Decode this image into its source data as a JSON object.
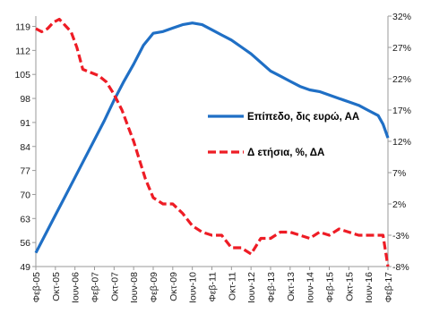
{
  "chart_data": {
    "type": "line",
    "categories": [
      "Φεβ-05",
      "Οκτ-05",
      "Ιουν-06",
      "Φεβ-07",
      "Οκτ-07",
      "Ιουν-08",
      "Φεβ-09",
      "Οκτ-09",
      "Ιουν-10",
      "Φεβ-11",
      "Οκτ-11",
      "Ιουν-12",
      "Φεβ-13",
      "Οκτ-13",
      "Ιουν-14",
      "Φεβ-15",
      "Οκτ-15",
      "Ιουν-16",
      "Φεβ-17"
    ],
    "left_axis": {
      "ticks": [
        "49",
        "56",
        "63",
        "70",
        "77",
        "84",
        "91",
        "98",
        "105",
        "112",
        "119"
      ],
      "min": 49,
      "max": 122
    },
    "right_axis": {
      "ticks": [
        "-8%",
        "-3%",
        "2%",
        "7%",
        "12%",
        "17%",
        "22%",
        "27%",
        "32%"
      ],
      "min": -8,
      "max": 32
    },
    "series": [
      {
        "name": "Επίπεδο, δις ευρώ, ΑΑ",
        "axis": "left",
        "color": "#1F6FC5",
        "style": "solid",
        "x": [
          0,
          0.5,
          1,
          1.5,
          2,
          2.5,
          3,
          3.5,
          4,
          4.5,
          5,
          5.5,
          6,
          6.5,
          7,
          7.5,
          8,
          8.5,
          9,
          9.5,
          10,
          10.5,
          11,
          11.5,
          12,
          12.5,
          13,
          13.5,
          14,
          14.5,
          15,
          15.5,
          16,
          16.5,
          17,
          17.5,
          17.75,
          18
        ],
        "values": [
          53,
          58.5,
          64,
          69.5,
          75,
          80.5,
          86,
          91.5,
          97.5,
          103,
          108,
          113.5,
          117,
          117.5,
          118.5,
          119.5,
          120,
          119.5,
          118,
          116.5,
          115,
          113,
          111,
          108.5,
          106,
          104.5,
          103,
          101.5,
          100.5,
          100,
          99,
          98,
          97,
          96,
          94.5,
          93,
          90.5,
          86.5
        ]
      },
      {
        "name": "Δ ετήσια, %, ΔΑ",
        "axis": "right",
        "color": "#EE1C25",
        "style": "dashed",
        "x": [
          0,
          0.3,
          0.6,
          0.9,
          1.2,
          1.5,
          1.8,
          2.1,
          2.4,
          2.8,
          3.2,
          3.6,
          4,
          4.4,
          4.7,
          5,
          5.3,
          5.6,
          6,
          6.5,
          7,
          7.5,
          8,
          8.5,
          9,
          9.5,
          10,
          10.5,
          11,
          11.5,
          12,
          12.5,
          13,
          13.5,
          14,
          14.5,
          15,
          15.5,
          16,
          16.5,
          17,
          17.5,
          17.75,
          18
        ],
        "values": [
          30,
          29.5,
          30,
          31,
          31.5,
          30.5,
          29.5,
          27,
          23.5,
          23,
          22.5,
          21.5,
          19.5,
          17,
          14.5,
          12,
          9,
          6,
          3,
          2,
          2,
          0.5,
          -1.5,
          -2.5,
          -3,
          -3,
          -5,
          -5,
          -6,
          -3.5,
          -3.5,
          -2.5,
          -2.5,
          -3,
          -3.5,
          -2.5,
          -3,
          -2,
          -2.5,
          -3,
          -3,
          -3,
          -3,
          -8
        ]
      }
    ]
  }
}
